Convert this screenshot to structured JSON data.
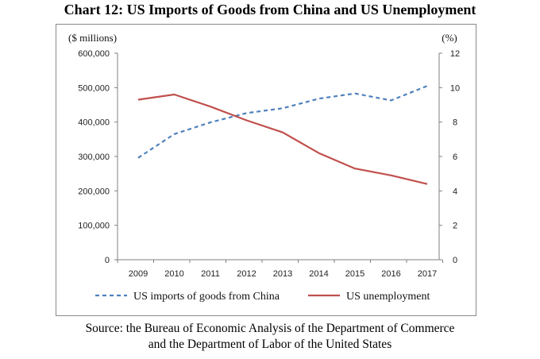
{
  "title": "Chart 12: US Imports of Goods from China and US Unemployment",
  "source_line1": "Source: the Bureau of Economic Analysis of the Department of Commerce",
  "source_line2": "and the Department of Labor of the United States",
  "colors": {
    "imports": "#4f81bd",
    "unemployment": "#c0504d",
    "axis": "#808080"
  },
  "chart_data": {
    "type": "line",
    "left_unit": "($ millions)",
    "right_unit": "(%)",
    "x": [
      "2009",
      "2010",
      "2011",
      "2012",
      "2013",
      "2014",
      "2015",
      "2016",
      "2017"
    ],
    "left_ylim": [
      0,
      600000
    ],
    "left_ticks": [
      "0",
      "100,000",
      "200,000",
      "300,000",
      "400,000",
      "500,000",
      "600,000"
    ],
    "right_ylim": [
      0,
      12
    ],
    "right_ticks": [
      "0",
      "2",
      "4",
      "6",
      "8",
      "10",
      "12"
    ],
    "series": [
      {
        "name": "US imports of goods from China",
        "axis": "left",
        "style": "dashed",
        "values": [
          296000,
          365000,
          399000,
          426000,
          440000,
          468000,
          483000,
          463000,
          505000
        ]
      },
      {
        "name": "US unemployment",
        "axis": "right",
        "style": "solid",
        "values": [
          9.3,
          9.6,
          8.9,
          8.1,
          7.4,
          6.2,
          5.3,
          4.9,
          4.4
        ]
      }
    ],
    "legend_position": "bottom",
    "grid": false
  }
}
